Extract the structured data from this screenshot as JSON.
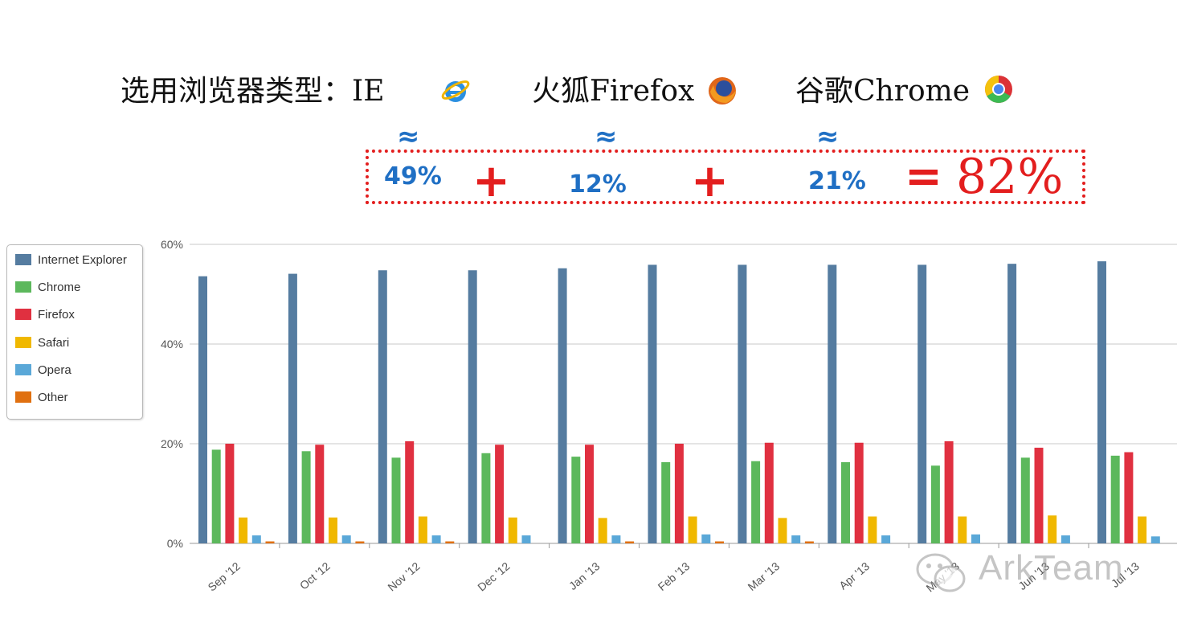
{
  "headline": {
    "prefix": "选用浏览器类型：IE",
    "firefox": "火狐Firefox",
    "chrome": "谷歌Chrome"
  },
  "approx_symbol": "≈",
  "sum": {
    "ie_pct": "49%",
    "firefox_pct": "12%",
    "chrome_pct": "21%",
    "plus": "+",
    "equals": "=",
    "total": "82%"
  },
  "icons": [
    "ie-logo-icon",
    "firefox-logo-icon",
    "chrome-logo-icon",
    "wechat-icon"
  ],
  "watermark": {
    "text": "ArkTeam"
  },
  "chart_data": {
    "type": "bar",
    "categories": [
      "Sep '12",
      "Oct '12",
      "Nov '12",
      "Dec '12",
      "Jan '13",
      "Feb '13",
      "Mar '13",
      "Apr '13",
      "May '13",
      "Jun '13",
      "Jul '13"
    ],
    "yticks": [
      "0%",
      "20%",
      "40%",
      "60%"
    ],
    "ylim": [
      0,
      60
    ],
    "grid": true,
    "legend_position": "left",
    "series": [
      {
        "name": "Internet Explorer",
        "color": "#557ca0",
        "values": [
          53.6,
          54.1,
          54.8,
          54.8,
          55.2,
          55.9,
          55.9,
          55.9,
          55.9,
          56.1,
          56.6
        ]
      },
      {
        "name": "Chrome",
        "color": "#5cb85c",
        "values": [
          18.8,
          18.5,
          17.2,
          18.1,
          17.4,
          16.3,
          16.5,
          16.3,
          15.6,
          17.2,
          17.6
        ]
      },
      {
        "name": "Firefox",
        "color": "#e03040",
        "values": [
          20.0,
          19.8,
          20.5,
          19.8,
          19.8,
          20.0,
          20.2,
          20.2,
          20.5,
          19.2,
          18.3
        ]
      },
      {
        "name": "Safari",
        "color": "#f0b800",
        "values": [
          5.2,
          5.2,
          5.4,
          5.2,
          5.1,
          5.4,
          5.1,
          5.4,
          5.4,
          5.6,
          5.4
        ]
      },
      {
        "name": "Opera",
        "color": "#5aa8d8",
        "values": [
          1.6,
          1.6,
          1.6,
          1.6,
          1.6,
          1.8,
          1.6,
          1.6,
          1.8,
          1.6,
          1.4
        ]
      },
      {
        "name": "Other",
        "color": "#e07010",
        "values": [
          0.4,
          0.4,
          0.4,
          0.0,
          0.4,
          0.4,
          0.4,
          0.0,
          0.0,
          0.0,
          0.0
        ]
      }
    ]
  }
}
